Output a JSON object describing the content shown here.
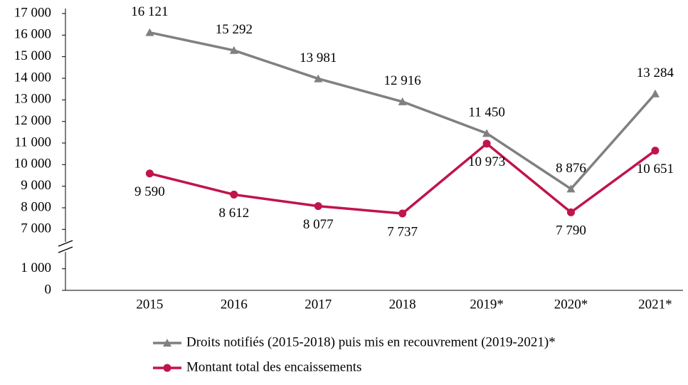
{
  "chart_data": {
    "type": "line",
    "categories": [
      "2015",
      "2016",
      "2017",
      "2018",
      "2019*",
      "2020*",
      "2021*"
    ],
    "series": [
      {
        "name": "Droits notifiés (2015-2018) puis mis en recouvrement (2019-2021)*",
        "color": "#808080",
        "marker": "triangle",
        "label_position": "above",
        "values": [
          16121,
          15292,
          13981,
          12916,
          11450,
          8876,
          13284
        ],
        "value_labels": [
          "16 121",
          "15 292",
          "13 981",
          "12 916",
          "11 450",
          "8 876",
          "13 284"
        ]
      },
      {
        "name": "Montant total des encaissements",
        "color": "#c0144a",
        "marker": "circle",
        "label_position": "below",
        "values": [
          9590,
          8612,
          8077,
          7737,
          10973,
          7790,
          10651
        ],
        "value_labels": [
          "9 590",
          "8 612",
          "8 077",
          "7 737",
          "10 973",
          "7 790",
          "10 651"
        ]
      }
    ],
    "ylim": [
      0,
      17000
    ],
    "y_break": [
      1500,
      6500
    ],
    "yticks": [
      0,
      {
        "value": 1000,
        "label": "1 000"
      },
      {
        "value": 7000,
        "label": "7 000"
      },
      {
        "value": 8000,
        "label": "8 000"
      },
      {
        "value": 9000,
        "label": "9 000"
      },
      {
        "value": 10000,
        "label": "10 000"
      },
      {
        "value": 11000,
        "label": "11 000"
      },
      {
        "value": 12000,
        "label": "12 000"
      },
      {
        "value": 13000,
        "label": "13 000"
      },
      {
        "value": 14000,
        "label": "14 000"
      },
      {
        "value": 15000,
        "label": "15 000"
      },
      {
        "value": 16000,
        "label": "16 000"
      },
      {
        "value": 17000,
        "label": "17 000"
      }
    ],
    "legend": "bottom"
  }
}
